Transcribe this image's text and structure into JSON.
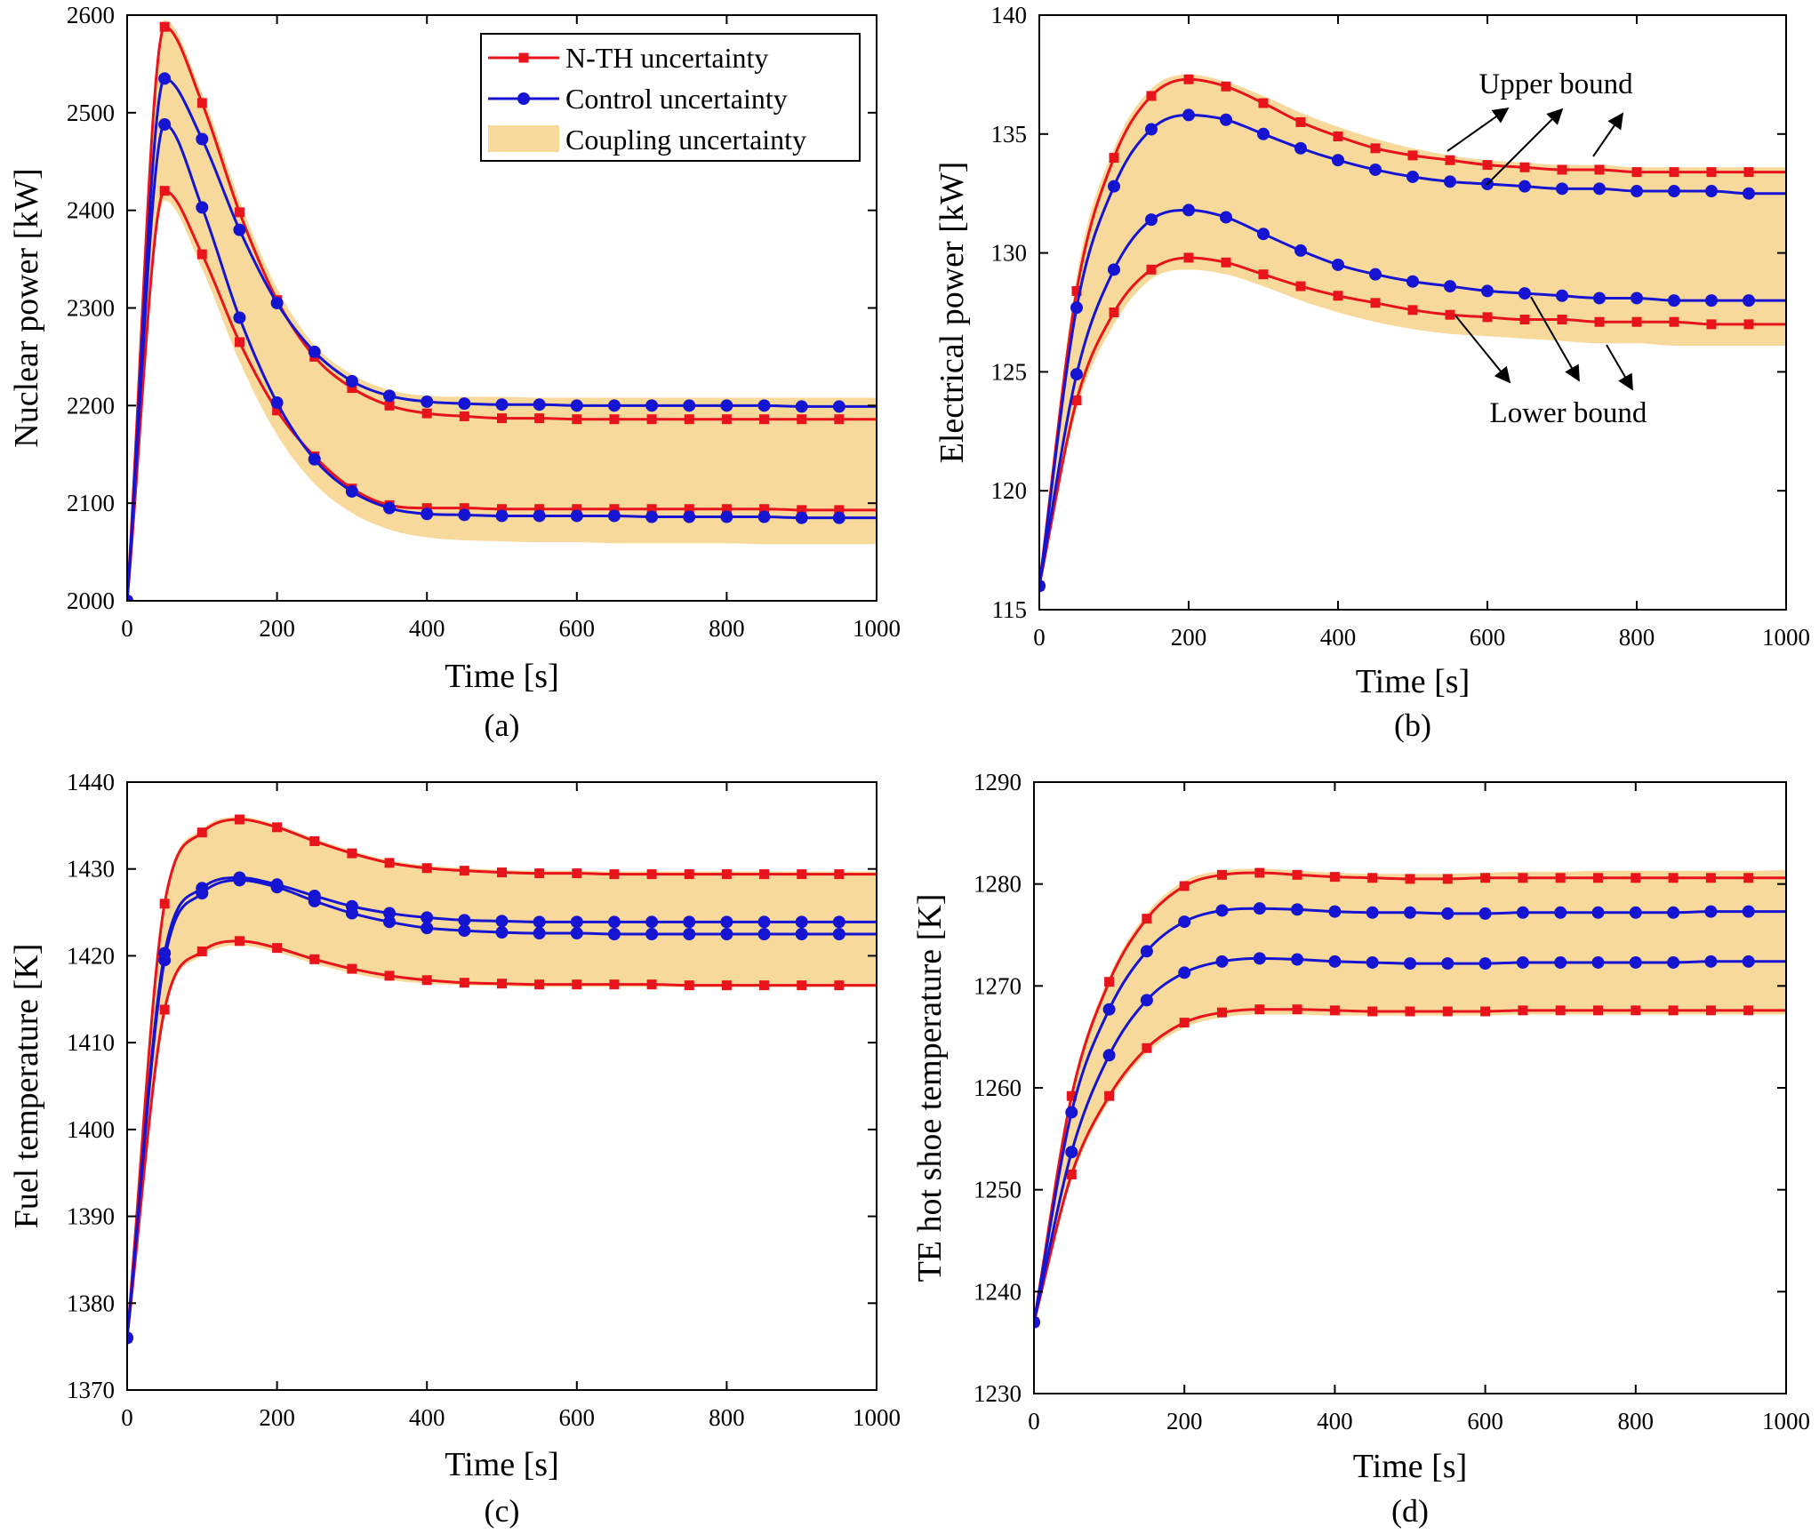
{
  "colors": {
    "nth": "#e8141b",
    "control": "#1414d2",
    "coupling_band": "#f7d99b",
    "axis": "#000000"
  },
  "legend": {
    "nth_label": "N-TH uncertainty",
    "control_label": "Control uncertainty",
    "coupling_label": "Coupling uncertainty"
  },
  "annotations": {
    "upper_bound": "Upper bound",
    "lower_bound": "Lower bound"
  },
  "chart_data": [
    {
      "id": "a",
      "type": "line",
      "caption": "(a)",
      "xlabel": "Time [s]",
      "ylabel": "Nuclear power [kW]",
      "xlim": [
        0,
        1000
      ],
      "ylim": [
        2000,
        2600
      ],
      "xticks": [
        0,
        200,
        400,
        600,
        800,
        1000
      ],
      "yticks": [
        2000,
        2100,
        2200,
        2300,
        2400,
        2500,
        2600
      ],
      "x": [
        0,
        50,
        100,
        150,
        200,
        250,
        300,
        350,
        400,
        450,
        500,
        550,
        600,
        650,
        700,
        750,
        800,
        850,
        900,
        950,
        1000
      ],
      "series": [
        {
          "name": "N-TH uncertainty upper",
          "group": "nth",
          "values": [
            2000,
            2588,
            2510,
            2398,
            2308,
            2250,
            2218,
            2200,
            2192,
            2189,
            2187,
            2187,
            2186,
            2186,
            2186,
            2186,
            2186,
            2186,
            2186,
            2186,
            2186
          ]
        },
        {
          "name": "N-TH uncertainty lower",
          "group": "nth",
          "values": [
            2000,
            2420,
            2355,
            2265,
            2195,
            2148,
            2115,
            2098,
            2095,
            2095,
            2094,
            2094,
            2094,
            2094,
            2094,
            2094,
            2094,
            2094,
            2093,
            2093,
            2093
          ]
        },
        {
          "name": "Control uncertainty upper",
          "group": "control",
          "values": [
            2000,
            2535,
            2473,
            2380,
            2305,
            2255,
            2225,
            2210,
            2204,
            2202,
            2201,
            2201,
            2200,
            2200,
            2200,
            2200,
            2200,
            2200,
            2199,
            2199,
            2199
          ]
        },
        {
          "name": "Control uncertainty lower",
          "group": "control",
          "values": [
            2000,
            2488,
            2403,
            2290,
            2203,
            2145,
            2112,
            2095,
            2089,
            2088,
            2087,
            2087,
            2087,
            2087,
            2086,
            2086,
            2086,
            2086,
            2085,
            2085,
            2085
          ]
        }
      ],
      "band": {
        "upper": [
          2000,
          2595,
          2520,
          2410,
          2320,
          2262,
          2232,
          2216,
          2210,
          2209,
          2209,
          2208,
          2208,
          2208,
          2208,
          2208,
          2208,
          2208,
          2208,
          2208,
          2208
        ],
        "lower": [
          2000,
          2410,
          2340,
          2245,
          2170,
          2120,
          2090,
          2073,
          2065,
          2062,
          2061,
          2060,
          2060,
          2059,
          2059,
          2059,
          2059,
          2058,
          2058,
          2058,
          2058
        ]
      },
      "legend": "top-right"
    },
    {
      "id": "b",
      "type": "line",
      "caption": "(b)",
      "xlabel": "Time [s]",
      "ylabel": "Electrical power [kW]",
      "xlim": [
        0,
        1000
      ],
      "ylim": [
        115,
        140
      ],
      "xticks": [
        0,
        200,
        400,
        600,
        800,
        1000
      ],
      "yticks": [
        115,
        120,
        125,
        130,
        135,
        140
      ],
      "x": [
        0,
        50,
        100,
        150,
        200,
        250,
        300,
        350,
        400,
        450,
        500,
        550,
        600,
        650,
        700,
        750,
        800,
        850,
        900,
        950,
        1000
      ],
      "series": [
        {
          "name": "N-TH uncertainty upper",
          "group": "nth",
          "values": [
            116,
            128.4,
            134.0,
            136.6,
            137.3,
            137.0,
            136.3,
            135.5,
            134.9,
            134.4,
            134.1,
            133.9,
            133.7,
            133.6,
            133.5,
            133.5,
            133.4,
            133.4,
            133.4,
            133.4,
            133.4
          ]
        },
        {
          "name": "N-TH uncertainty lower",
          "group": "nth",
          "values": [
            116,
            123.8,
            127.5,
            129.3,
            129.8,
            129.6,
            129.1,
            128.6,
            128.2,
            127.9,
            127.6,
            127.4,
            127.3,
            127.2,
            127.2,
            127.1,
            127.1,
            127.1,
            127.0,
            127.0,
            127.0
          ]
        },
        {
          "name": "Control uncertainty upper",
          "group": "control",
          "values": [
            116,
            127.7,
            132.8,
            135.2,
            135.8,
            135.6,
            135.0,
            134.4,
            133.9,
            133.5,
            133.2,
            133.0,
            132.9,
            132.8,
            132.7,
            132.7,
            132.6,
            132.6,
            132.6,
            132.5,
            132.5
          ]
        },
        {
          "name": "Control uncertainty lower",
          "group": "control",
          "values": [
            116,
            124.9,
            129.3,
            131.4,
            131.8,
            131.5,
            130.8,
            130.1,
            129.5,
            129.1,
            128.8,
            128.6,
            128.4,
            128.3,
            128.2,
            128.1,
            128.1,
            128.0,
            128.0,
            128.0,
            128.0
          ]
        }
      ],
      "band": {
        "upper": [
          116,
          129.0,
          134.4,
          136.9,
          137.5,
          137.2,
          136.6,
          135.9,
          135.3,
          134.8,
          134.4,
          134.1,
          133.9,
          133.8,
          133.7,
          133.7,
          133.6,
          133.6,
          133.6,
          133.6,
          133.6
        ],
        "lower": [
          116,
          123.4,
          127.0,
          128.9,
          129.3,
          129.1,
          128.6,
          128.0,
          127.5,
          127.1,
          126.8,
          126.6,
          126.5,
          126.4,
          126.3,
          126.2,
          126.2,
          126.1,
          126.1,
          126.1,
          126.1
        ]
      },
      "annotations": [
        "Upper bound",
        "Lower bound"
      ]
    },
    {
      "id": "c",
      "type": "line",
      "caption": "(c)",
      "xlabel": "Time [s]",
      "ylabel": "Fuel temperature [K]",
      "xlim": [
        0,
        1000
      ],
      "ylim": [
        1370,
        1440
      ],
      "xticks": [
        0,
        200,
        400,
        600,
        800,
        1000
      ],
      "yticks": [
        1370,
        1380,
        1390,
        1400,
        1410,
        1420,
        1430,
        1440
      ],
      "x": [
        0,
        50,
        100,
        150,
        200,
        250,
        300,
        350,
        400,
        450,
        500,
        550,
        600,
        650,
        700,
        750,
        800,
        850,
        900,
        950,
        1000
      ],
      "series": [
        {
          "name": "N-TH uncertainty upper",
          "group": "nth",
          "values": [
            1376,
            1426.0,
            1434.2,
            1435.7,
            1434.8,
            1433.2,
            1431.8,
            1430.7,
            1430.1,
            1429.8,
            1429.6,
            1429.5,
            1429.5,
            1429.4,
            1429.4,
            1429.4,
            1429.4,
            1429.4,
            1429.4,
            1429.4,
            1429.4
          ]
        },
        {
          "name": "N-TH uncertainty lower",
          "group": "nth",
          "values": [
            1376,
            1413.8,
            1420.5,
            1421.7,
            1420.9,
            1419.6,
            1418.5,
            1417.7,
            1417.2,
            1416.9,
            1416.8,
            1416.7,
            1416.7,
            1416.7,
            1416.7,
            1416.6,
            1416.6,
            1416.6,
            1416.6,
            1416.6,
            1416.6
          ]
        },
        {
          "name": "Control uncertainty upper",
          "group": "control",
          "values": [
            1376,
            1420.3,
            1427.8,
            1429.0,
            1428.2,
            1426.9,
            1425.7,
            1424.9,
            1424.4,
            1424.1,
            1424.0,
            1423.9,
            1423.9,
            1423.9,
            1423.9,
            1423.9,
            1423.9,
            1423.9,
            1423.9,
            1423.9,
            1423.9
          ]
        },
        {
          "name": "Control uncertainty lower",
          "group": "control",
          "values": [
            1376,
            1419.5,
            1427.2,
            1428.7,
            1427.9,
            1426.3,
            1424.9,
            1423.9,
            1423.2,
            1422.9,
            1422.7,
            1422.6,
            1422.6,
            1422.5,
            1422.5,
            1422.5,
            1422.5,
            1422.5,
            1422.5,
            1422.5,
            1422.5
          ]
        }
      ],
      "band": {
        "upper": [
          1376,
          1426.5,
          1434.6,
          1436.0,
          1435.1,
          1433.5,
          1432.1,
          1431.0,
          1430.4,
          1430.1,
          1429.9,
          1429.8,
          1429.8,
          1429.7,
          1429.7,
          1429.7,
          1429.7,
          1429.7,
          1429.7,
          1429.7,
          1429.7
        ],
        "lower": [
          1376,
          1413.3,
          1420.0,
          1421.2,
          1420.4,
          1419.1,
          1418.0,
          1417.2,
          1416.8,
          1416.6,
          1416.5,
          1416.4,
          1416.4,
          1416.4,
          1416.4,
          1416.4,
          1416.4,
          1416.4,
          1416.4,
          1416.4,
          1416.4
        ]
      }
    },
    {
      "id": "d",
      "type": "line",
      "caption": "(d)",
      "xlabel": "Time [s]",
      "ylabel": "TE hot shoe temperature [K]",
      "xlim": [
        0,
        1000
      ],
      "ylim": [
        1230,
        1290
      ],
      "xticks": [
        0,
        200,
        400,
        600,
        800,
        1000
      ],
      "yticks": [
        1230,
        1240,
        1250,
        1260,
        1270,
        1280,
        1290
      ],
      "x": [
        0,
        50,
        100,
        150,
        200,
        250,
        300,
        350,
        400,
        450,
        500,
        550,
        600,
        650,
        700,
        750,
        800,
        850,
        900,
        950,
        1000
      ],
      "series": [
        {
          "name": "N-TH uncertainty upper",
          "group": "nth",
          "values": [
            1237,
            1259.2,
            1270.4,
            1276.6,
            1279.8,
            1280.9,
            1281.1,
            1280.9,
            1280.7,
            1280.6,
            1280.5,
            1280.5,
            1280.6,
            1280.6,
            1280.6,
            1280.6,
            1280.6,
            1280.6,
            1280.6,
            1280.6,
            1280.6
          ]
        },
        {
          "name": "N-TH uncertainty lower",
          "group": "nth",
          "values": [
            1237,
            1251.5,
            1259.2,
            1263.9,
            1266.4,
            1267.4,
            1267.7,
            1267.7,
            1267.6,
            1267.5,
            1267.5,
            1267.5,
            1267.5,
            1267.6,
            1267.6,
            1267.6,
            1267.6,
            1267.6,
            1267.6,
            1267.6,
            1267.6
          ]
        },
        {
          "name": "Control uncertainty upper",
          "group": "control",
          "values": [
            1237,
            1257.6,
            1267.7,
            1273.4,
            1276.3,
            1277.4,
            1277.6,
            1277.5,
            1277.3,
            1277.2,
            1277.2,
            1277.1,
            1277.1,
            1277.2,
            1277.2,
            1277.2,
            1277.2,
            1277.2,
            1277.3,
            1277.3,
            1277.3
          ]
        },
        {
          "name": "Control uncertainty lower",
          "group": "control",
          "values": [
            1237,
            1253.7,
            1263.2,
            1268.6,
            1271.3,
            1272.4,
            1272.7,
            1272.6,
            1272.4,
            1272.3,
            1272.2,
            1272.2,
            1272.2,
            1272.3,
            1272.3,
            1272.3,
            1272.3,
            1272.3,
            1272.4,
            1272.4,
            1272.4
          ]
        }
      ],
      "band": {
        "upper": [
          1237,
          1259.7,
          1270.9,
          1277.1,
          1280.3,
          1281.3,
          1281.5,
          1281.3,
          1281.1,
          1281.0,
          1281.0,
          1281.0,
          1281.1,
          1281.2,
          1281.2,
          1281.3,
          1281.3,
          1281.3,
          1281.3,
          1281.3,
          1281.4
        ],
        "lower": [
          1237,
          1251.0,
          1258.7,
          1263.4,
          1265.9,
          1266.9,
          1267.2,
          1267.2,
          1267.1,
          1267.1,
          1267.1,
          1267.1,
          1267.1,
          1267.2,
          1267.2,
          1267.2,
          1267.2,
          1267.2,
          1267.2,
          1267.2,
          1267.2
        ]
      }
    }
  ]
}
